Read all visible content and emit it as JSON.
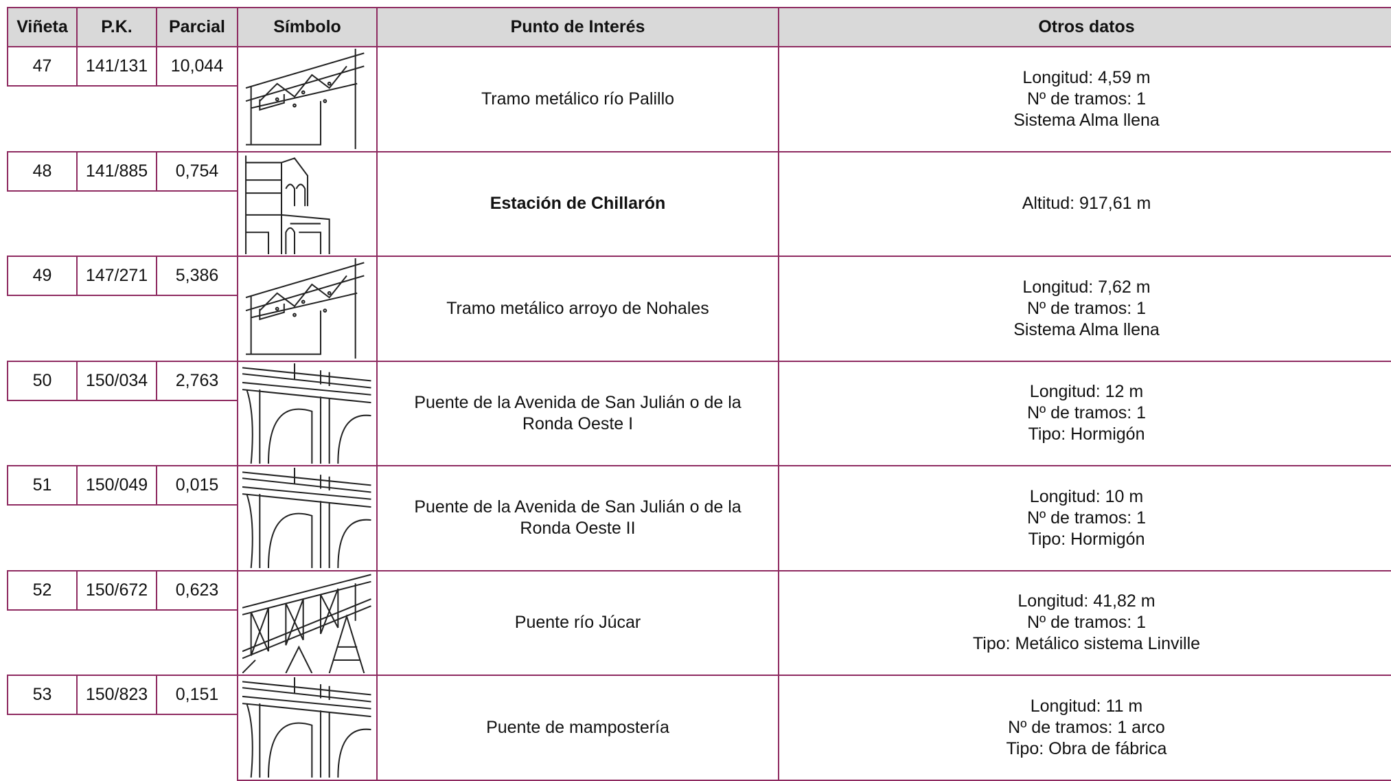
{
  "table": {
    "header": [
      "Viñeta",
      "P.K.",
      "Parcial",
      "Símbolo",
      "Punto de Interés",
      "Otros datos"
    ],
    "rows": [
      {
        "vineta": "47",
        "pk": "141/131",
        "parcial": "10,044",
        "punto": "Tramo metálico río Palillo",
        "otros": [
          "Longitud: 4,59 m",
          "Nº de tramos: 1",
          "Sistema Alma llena"
        ]
      },
      {
        "vineta": "48",
        "pk": "141/885",
        "parcial": "0,754",
        "punto": "Estación de Chillarón",
        "otros": [
          "Altitud: 917,61 m"
        ]
      },
      {
        "vineta": "49",
        "pk": "147/271",
        "parcial": "5,386",
        "punto": "Tramo metálico arroyo de Nohales",
        "otros": [
          "Longitud: 7,62 m",
          "Nº de tramos: 1",
          "Sistema Alma llena"
        ]
      },
      {
        "vineta": "50",
        "pk": "150/034",
        "parcial": "2,763",
        "punto": "Puente de la Avenida de San Julián o de la Ronda Oeste I",
        "otros": [
          "Longitud: 12 m",
          "Nº de tramos: 1",
          "Tipo: Hormigón"
        ]
      },
      {
        "vineta": "51",
        "pk": "150/049",
        "parcial": "0,015",
        "punto": "Puente de la Avenida de San Julián o de la Ronda Oeste II",
        "otros": [
          "Longitud: 10 m",
          "Nº de tramos: 1",
          "Tipo: Hormigón"
        ]
      },
      {
        "vineta": "52",
        "pk": "150/672",
        "parcial": "0,623",
        "punto": "Puente río Júcar",
        "otros": [
          "Longitud: 41,82 m",
          "Nº de tramos: 1",
          "Tipo: Metálico sistema Linville"
        ]
      },
      {
        "vineta": "53",
        "pk": "150/823",
        "parcial": "0,151",
        "punto": "Puente de mampostería",
        "otros": [
          "Longitud: 11 m",
          "Nº de tramos: 1 arco",
          "Tipo: Obra de fábrica"
        ]
      }
    ]
  }
}
